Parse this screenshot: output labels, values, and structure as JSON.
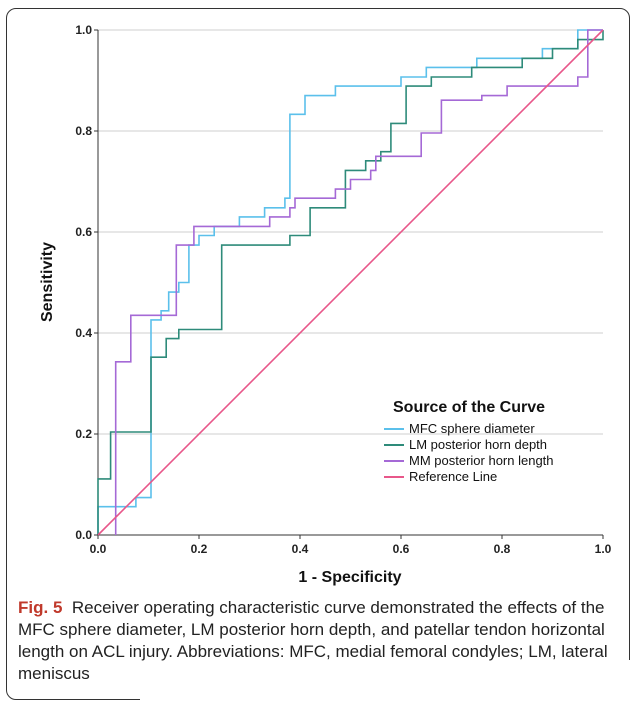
{
  "chart_data": {
    "type": "line",
    "xlabel": "1 - Specificity",
    "ylabel": "Sensitivity",
    "xlim": [
      0,
      1
    ],
    "ylim": [
      0,
      1
    ],
    "x_ticks": [
      "0.0",
      "0.2",
      "0.4",
      "0.6",
      "0.8",
      "1.0"
    ],
    "y_ticks": [
      "0.0",
      "0.2",
      "0.4",
      "0.6",
      "0.8",
      "1.0"
    ],
    "grid": "horizontal",
    "legend_title": "Source of the Curve",
    "legend_position": "bottom-right",
    "series": [
      {
        "name": "MFC sphere diameter",
        "color": "#5bc0eb",
        "points": [
          [
            0,
            0
          ],
          [
            0,
            0.056
          ],
          [
            0.075,
            0.056
          ],
          [
            0.075,
            0.074
          ],
          [
            0.105,
            0.074
          ],
          [
            0.105,
            0.426
          ],
          [
            0.125,
            0.426
          ],
          [
            0.125,
            0.444
          ],
          [
            0.14,
            0.444
          ],
          [
            0.14,
            0.481
          ],
          [
            0.16,
            0.481
          ],
          [
            0.16,
            0.5
          ],
          [
            0.18,
            0.5
          ],
          [
            0.18,
            0.574
          ],
          [
            0.2,
            0.574
          ],
          [
            0.2,
            0.593
          ],
          [
            0.23,
            0.593
          ],
          [
            0.23,
            0.611
          ],
          [
            0.28,
            0.611
          ],
          [
            0.28,
            0.63
          ],
          [
            0.33,
            0.63
          ],
          [
            0.33,
            0.648
          ],
          [
            0.37,
            0.648
          ],
          [
            0.37,
            0.667
          ],
          [
            0.38,
            0.667
          ],
          [
            0.38,
            0.833
          ],
          [
            0.41,
            0.833
          ],
          [
            0.41,
            0.87
          ],
          [
            0.47,
            0.87
          ],
          [
            0.47,
            0.889
          ],
          [
            0.6,
            0.889
          ],
          [
            0.6,
            0.907
          ],
          [
            0.65,
            0.907
          ],
          [
            0.65,
            0.926
          ],
          [
            0.75,
            0.926
          ],
          [
            0.75,
            0.944
          ],
          [
            0.88,
            0.944
          ],
          [
            0.88,
            0.963
          ],
          [
            0.95,
            0.963
          ],
          [
            0.95,
            1.0
          ],
          [
            1.0,
            1.0
          ]
        ]
      },
      {
        "name": "LM posterior horn depth",
        "color": "#2e8b7a",
        "points": [
          [
            0,
            0
          ],
          [
            0,
            0.111
          ],
          [
            0.025,
            0.111
          ],
          [
            0.025,
            0.204
          ],
          [
            0.105,
            0.204
          ],
          [
            0.105,
            0.352
          ],
          [
            0.135,
            0.352
          ],
          [
            0.135,
            0.389
          ],
          [
            0.16,
            0.389
          ],
          [
            0.16,
            0.407
          ],
          [
            0.245,
            0.407
          ],
          [
            0.245,
            0.574
          ],
          [
            0.38,
            0.574
          ],
          [
            0.38,
            0.593
          ],
          [
            0.42,
            0.593
          ],
          [
            0.42,
            0.648
          ],
          [
            0.49,
            0.648
          ],
          [
            0.49,
            0.722
          ],
          [
            0.53,
            0.722
          ],
          [
            0.53,
            0.741
          ],
          [
            0.56,
            0.741
          ],
          [
            0.56,
            0.759
          ],
          [
            0.58,
            0.759
          ],
          [
            0.58,
            0.815
          ],
          [
            0.61,
            0.815
          ],
          [
            0.61,
            0.889
          ],
          [
            0.66,
            0.889
          ],
          [
            0.66,
            0.907
          ],
          [
            0.74,
            0.907
          ],
          [
            0.74,
            0.926
          ],
          [
            0.84,
            0.926
          ],
          [
            0.84,
            0.944
          ],
          [
            0.9,
            0.944
          ],
          [
            0.9,
            0.963
          ],
          [
            0.95,
            0.963
          ],
          [
            0.95,
            0.981
          ],
          [
            1.0,
            0.981
          ],
          [
            1.0,
            1.0
          ]
        ]
      },
      {
        "name": "MM posterior horn length",
        "color": "#a569d6",
        "points": [
          [
            0.035,
            0
          ],
          [
            0.035,
            0.343
          ],
          [
            0.065,
            0.343
          ],
          [
            0.065,
            0.435
          ],
          [
            0.12,
            0.435
          ],
          [
            0.155,
            0.435
          ],
          [
            0.155,
            0.574
          ],
          [
            0.19,
            0.574
          ],
          [
            0.19,
            0.611
          ],
          [
            0.28,
            0.611
          ],
          [
            0.34,
            0.611
          ],
          [
            0.34,
            0.63
          ],
          [
            0.38,
            0.63
          ],
          [
            0.38,
            0.648
          ],
          [
            0.39,
            0.648
          ],
          [
            0.39,
            0.667
          ],
          [
            0.47,
            0.667
          ],
          [
            0.47,
            0.685
          ],
          [
            0.5,
            0.685
          ],
          [
            0.5,
            0.704
          ],
          [
            0.54,
            0.704
          ],
          [
            0.54,
            0.722
          ],
          [
            0.55,
            0.722
          ],
          [
            0.55,
            0.75
          ],
          [
            0.64,
            0.75
          ],
          [
            0.64,
            0.796
          ],
          [
            0.68,
            0.796
          ],
          [
            0.68,
            0.861
          ],
          [
            0.76,
            0.861
          ],
          [
            0.76,
            0.87
          ],
          [
            0.81,
            0.87
          ],
          [
            0.81,
            0.889
          ],
          [
            0.95,
            0.889
          ],
          [
            0.95,
            0.907
          ],
          [
            0.97,
            0.907
          ],
          [
            0.97,
            1.0
          ],
          [
            1.0,
            1.0
          ]
        ]
      },
      {
        "name": "Reference Line",
        "color": "#e8578a",
        "points": [
          [
            0,
            0
          ],
          [
            1,
            1
          ]
        ]
      }
    ]
  },
  "caption": {
    "fig_label": "Fig. 5",
    "text": "Receiver operating characteristic curve demonstrated the effects of the MFC sphere diameter, LM posterior horn depth, and patellar tendon horizontal length on ACL injury. Abbreviations: MFC, medial femoral condyles; LM, lateral meniscus"
  }
}
